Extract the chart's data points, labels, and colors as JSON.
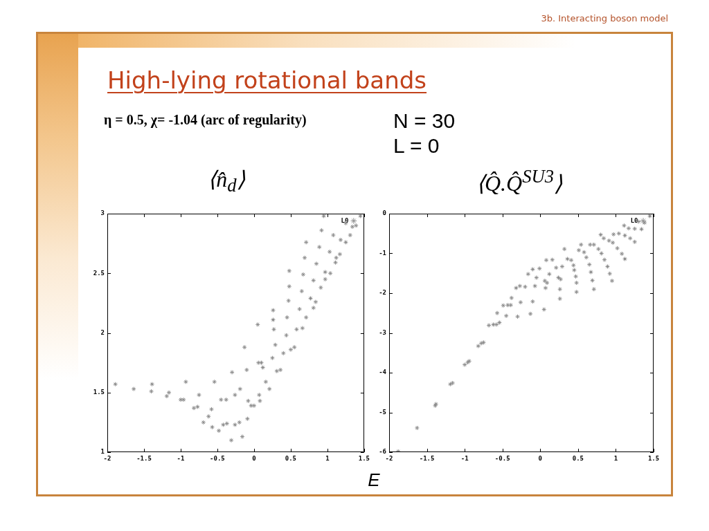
{
  "chart_data": [
    {
      "type": "scatter",
      "title": "High-lying rotational bands",
      "subtitle": "η = 0.5, χ= -1.04 (arc of regularity)",
      "annotations": [
        "3b. Interacting boson model",
        "N = 30",
        "L = 0"
      ],
      "ylabel": "⟨n̂$_{d}$⟩",
      "xlabel": "E",
      "xlim": [
        -2,
        1.5
      ],
      "xticks": [
        -2,
        -1.5,
        -1,
        -0.5,
        0,
        0.5,
        1,
        1.5
      ],
      "ylim": [
        1,
        3
      ],
      "yticks": [
        1,
        1.5,
        2,
        2.5,
        3
      ],
      "legend": "top right",
      "marker": "cross",
      "series": [
        {
          "name": "L0",
          "color": "#8c8c8c",
          "x": [
            -1.89,
            -1.64,
            -1.39,
            -1.4,
            -1.19,
            -1.16,
            -1.0,
            -0.96,
            -0.93,
            -0.82,
            -0.77,
            -0.75,
            -0.69,
            -0.62,
            -0.58,
            -0.57,
            -0.54,
            -0.48,
            -0.45,
            -0.42,
            -0.38,
            -0.37,
            -0.31,
            -0.3,
            -0.26,
            -0.26,
            -0.2,
            -0.19,
            -0.16,
            -0.13,
            -0.1,
            -0.09,
            -0.08,
            -0.04,
            0.0,
            0.05,
            0.07,
            0.06,
            0.1,
            0.08,
            0.12,
            0.16,
            0.21,
            0.25,
            0.26,
            0.26,
            0.27,
            0.29,
            0.31,
            0.36,
            0.4,
            0.44,
            0.45,
            0.47,
            0.48,
            0.48,
            0.5,
            0.55,
            0.58,
            0.62,
            0.65,
            0.66,
            0.67,
            0.69,
            0.71,
            0.71,
            0.77,
            0.81,
            0.81,
            0.84,
            0.85,
            0.89,
            0.91,
            0.92,
            0.95,
            0.97,
            0.97,
            1.03,
            1.04,
            1.08,
            1.11,
            1.12,
            1.17,
            1.18,
            1.25,
            1.25,
            1.31,
            1.34,
            1.39,
            1.45
          ],
          "values": [
            1.57,
            1.53,
            1.57,
            1.51,
            1.47,
            1.5,
            1.44,
            1.44,
            1.59,
            1.37,
            1.38,
            1.48,
            1.25,
            1.3,
            1.36,
            1.21,
            1.59,
            1.18,
            1.44,
            1.23,
            1.44,
            1.24,
            1.1,
            1.67,
            1.48,
            1.23,
            1.25,
            1.53,
            1.13,
            1.88,
            1.69,
            1.28,
            1.43,
            1.39,
            1.39,
            2.07,
            1.48,
            1.75,
            1.75,
            1.43,
            1.71,
            1.59,
            1.53,
            1.79,
            2.19,
            2.11,
            2.03,
            1.9,
            1.68,
            1.69,
            1.83,
            1.98,
            2.13,
            2.27,
            2.39,
            2.52,
            1.86,
            1.88,
            2.03,
            2.2,
            2.35,
            2.04,
            2.49,
            2.63,
            2.76,
            2.13,
            2.29,
            2.21,
            2.44,
            2.26,
            2.58,
            2.72,
            2.38,
            2.86,
            2.98,
            2.45,
            2.51,
            2.68,
            2.5,
            2.82,
            2.59,
            2.63,
            2.66,
            2.78,
            2.92,
            2.76,
            2.82,
            2.89,
            2.9,
            2.98
          ]
        }
      ]
    },
    {
      "type": "scatter",
      "ylabel": "⟨Q̂.Q̂$^{SU3}$⟩",
      "xlim": [
        -2,
        1.5
      ],
      "xticks": [
        -2,
        -1.5,
        -1,
        -0.5,
        0,
        0.5,
        1,
        1.5
      ],
      "ylim": [
        -6,
        0
      ],
      "yticks": [
        -6,
        -5,
        -4,
        -3,
        -2,
        -1,
        0
      ],
      "legend": "top right",
      "marker": "cross",
      "series": [
        {
          "name": "L0",
          "color": "#8c8c8c",
          "x": [
            -1.88,
            -1.63,
            -1.39,
            -1.38,
            -1.19,
            -1.16,
            -1.0,
            -0.96,
            -0.94,
            -0.82,
            -0.78,
            -0.75,
            -0.68,
            -0.62,
            -0.58,
            -0.54,
            -0.57,
            -0.49,
            -0.45,
            -0.43,
            -0.39,
            -0.38,
            -0.32,
            -0.3,
            -0.27,
            -0.26,
            -0.2,
            -0.16,
            -0.13,
            -0.1,
            -0.1,
            -0.07,
            -0.05,
            -0.01,
            0.05,
            0.06,
            0.07,
            0.08,
            0.09,
            0.12,
            0.16,
            0.21,
            0.24,
            0.26,
            0.26,
            0.27,
            0.29,
            0.32,
            0.36,
            0.41,
            0.44,
            0.45,
            0.47,
            0.48,
            0.48,
            0.51,
            0.54,
            0.58,
            0.61,
            0.65,
            0.66,
            0.67,
            0.69,
            0.71,
            0.71,
            0.77,
            0.8,
            0.81,
            0.84,
            0.85,
            0.89,
            0.91,
            0.92,
            0.95,
            0.96,
            0.97,
            1.02,
            1.04,
            1.08,
            1.11,
            1.12,
            1.12,
            1.17,
            1.19,
            1.25,
            1.25,
            1.3,
            1.34,
            1.38,
            1.45
          ],
          "values": [
            -5.98,
            -5.39,
            -4.83,
            -4.79,
            -4.29,
            -4.26,
            -3.8,
            -3.74,
            -3.71,
            -3.33,
            -3.26,
            -3.24,
            -2.81,
            -2.79,
            -2.79,
            -2.74,
            -2.5,
            -2.31,
            -2.57,
            -2.3,
            -2.3,
            -2.12,
            -1.87,
            -2.59,
            -1.82,
            -2.23,
            -1.84,
            -1.52,
            -2.52,
            -2.21,
            -1.4,
            -1.82,
            -1.61,
            -1.38,
            -2.41,
            -1.69,
            -1.87,
            -1.17,
            -1.74,
            -1.52,
            -1.16,
            -1.36,
            -1.61,
            -2.14,
            -1.9,
            -1.65,
            -1.33,
            -0.89,
            -1.14,
            -1.17,
            -1.3,
            -1.42,
            -1.58,
            -1.74,
            -1.97,
            -0.92,
            -0.78,
            -0.97,
            -1.1,
            -1.28,
            -0.78,
            -1.47,
            -1.68,
            -0.78,
            -1.9,
            -0.89,
            -0.53,
            -1.0,
            -0.62,
            -1.16,
            -1.33,
            -0.68,
            -1.51,
            -1.69,
            -0.73,
            -0.52,
            -0.87,
            -0.5,
            -1.01,
            -0.3,
            -0.55,
            -1.14,
            -0.37,
            -0.62,
            -0.38,
            -0.71,
            -0.2,
            -0.39,
            -0.23,
            -0.06
          ]
        }
      ]
    }
  ]
}
